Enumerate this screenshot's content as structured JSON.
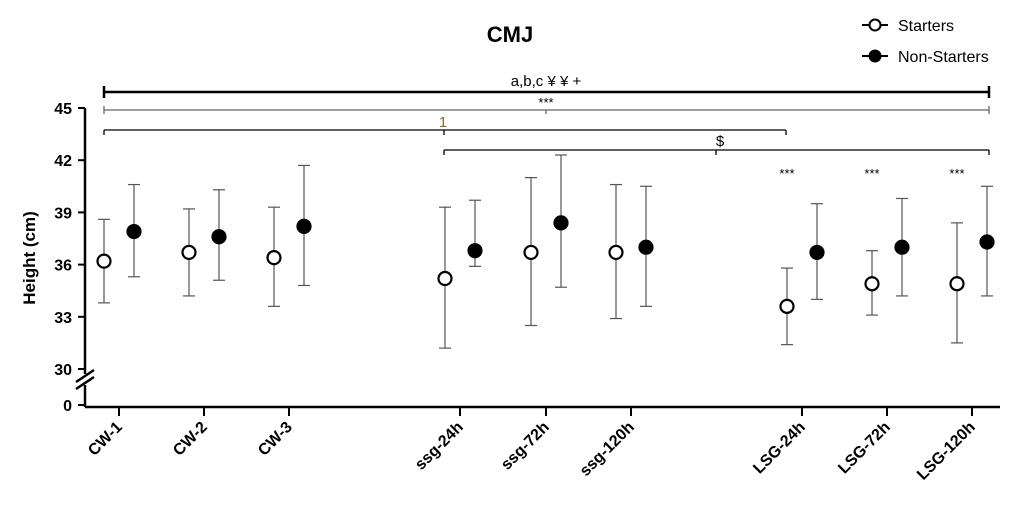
{
  "chart_data": {
    "type": "scatter",
    "title": "CMJ",
    "ylabel": "Height (cm)",
    "xlabel": "",
    "ylim": [
      30,
      45
    ],
    "y_axis_break": true,
    "yticks": [
      "0",
      "30",
      "33",
      "36",
      "39",
      "42",
      "45"
    ],
    "grid": false,
    "legend_position": "top-right",
    "categories": [
      "CW-1",
      "CW-2",
      "CW-3",
      "ssg-24h",
      "ssg-72h",
      "ssg-120h",
      "LSG-24h",
      "LSG-72h",
      "LSG-120h"
    ],
    "series": [
      {
        "name": "Starters",
        "marker": "open-circle",
        "values": [
          36.2,
          36.7,
          36.4,
          35.2,
          36.7,
          36.7,
          33.6,
          34.9,
          34.9
        ],
        "error_low": [
          33.8,
          34.2,
          33.6,
          31.2,
          32.5,
          32.9,
          31.4,
          33.1,
          31.5
        ],
        "error_high": [
          38.6,
          39.2,
          39.3,
          39.3,
          41.0,
          40.6,
          35.8,
          36.8,
          38.4
        ]
      },
      {
        "name": "Non-Starters",
        "marker": "filled-circle",
        "values": [
          37.9,
          37.6,
          38.2,
          36.8,
          38.4,
          37.0,
          36.7,
          37.0,
          37.3
        ],
        "error_low": [
          35.3,
          35.1,
          34.8,
          35.9,
          34.7,
          33.6,
          34.0,
          34.2,
          34.2
        ],
        "error_high": [
          40.6,
          40.3,
          41.7,
          39.7,
          42.3,
          40.5,
          39.5,
          39.8,
          40.5
        ]
      }
    ],
    "annotations": {
      "bracket_top": "a,b,c ¥ ¥ +",
      "bracket_2": "***",
      "bracket_3": "1",
      "bracket_4": "$",
      "point_stars": [
        "***",
        "***",
        "***"
      ]
    }
  }
}
